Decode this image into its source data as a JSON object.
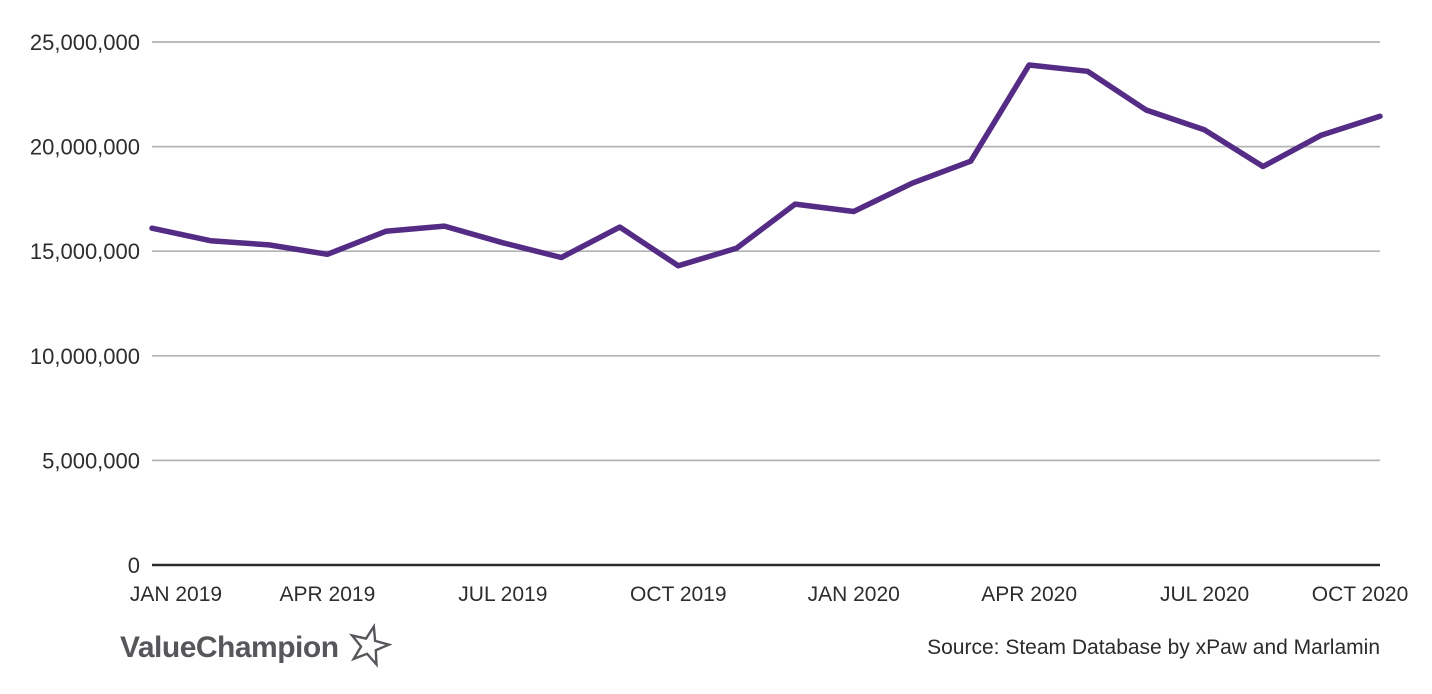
{
  "chart_data": {
    "type": "line",
    "title": "",
    "xlabel": "",
    "ylabel": "",
    "x": [
      "Jan 2019",
      "Feb 2019",
      "Mar 2019",
      "Apr 2019",
      "May 2019",
      "Jun 2019",
      "Jul 2019",
      "Aug 2019",
      "Sep 2019",
      "Oct 2019",
      "Nov 2019",
      "Dec 2019",
      "Jan 2020",
      "Feb 2020",
      "Mar 2020",
      "Apr 2020",
      "May 2020",
      "Jun 2020",
      "Jul 2020",
      "Aug 2020",
      "Sep 2020",
      "Oct 2020"
    ],
    "values": [
      16100000,
      15500000,
      15300000,
      14850000,
      15950000,
      16200000,
      15400000,
      14700000,
      16150000,
      14300000,
      15150000,
      17250000,
      16900000,
      18250000,
      19300000,
      23900000,
      23600000,
      21750000,
      20800000,
      19050000,
      20550000,
      21450000
    ],
    "x_tick_labels": [
      "JAN 2019",
      "APR 2019",
      "JUL 2019",
      "OCT 2019",
      "JAN 2020",
      "APR 2020",
      "JUL 2020",
      "OCT 2020"
    ],
    "x_tick_indices": [
      0,
      3,
      6,
      9,
      12,
      15,
      18,
      21
    ],
    "y_ticks": [
      0,
      5000000,
      10000000,
      15000000,
      20000000,
      25000000
    ],
    "ylim": [
      0,
      25000000
    ],
    "grid": true,
    "legend_position": "none",
    "line_color": "#542c85"
  },
  "footer": {
    "logo_text": "ValueChampion",
    "source_text": "Source: Steam Database by xPaw and Marlamin"
  },
  "icons": {
    "logo_star": "star-outline-icon"
  },
  "colors": {
    "line": "#542c85",
    "grid": "#b3b3b6",
    "axis": "#2b2b2c",
    "tick_text": "#2d2d2e",
    "logo": "#56575b",
    "source_text": "#2b2b2c",
    "background": "#ffffff"
  }
}
